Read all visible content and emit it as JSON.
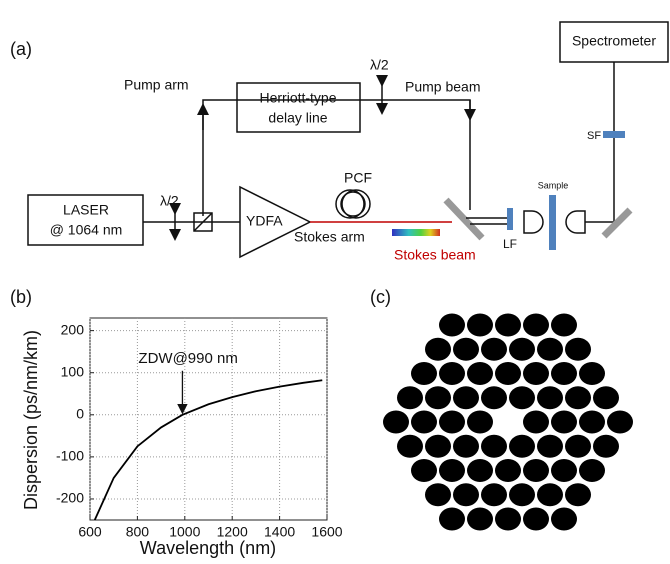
{
  "panel_a": {
    "label": "(a)",
    "spectrometer": "Spectrometer",
    "pump_arm": "Pump arm",
    "delay_line": [
      "Herriott-type",
      "delay line"
    ],
    "half_wave_1": "λ/2",
    "half_wave_2": "λ/2",
    "pump_beam": "Pump beam",
    "sf": "SF",
    "laser": [
      "LASER",
      "@ 1064 nm"
    ],
    "ydfa": "YDFA",
    "pcf": "PCF",
    "stokes_arm": "Stokes arm",
    "stokes_beam": "Stokes beam",
    "lf": "LF",
    "sample": "Sample"
  },
  "chart_data": {
    "type": "line",
    "label": "(b)",
    "x_label": "Wavelength (nm)",
    "y_label": "Dispersion (ps/nm/km)",
    "x": [
      620,
      700,
      800,
      900,
      990,
      1100,
      1200,
      1300,
      1400,
      1500,
      1580
    ],
    "series": [
      {
        "color": "#000000",
        "values": [
          -250,
          -150,
          -75,
          -30,
          0,
          25,
          42,
          56,
          67,
          76,
          82
        ]
      }
    ],
    "xlim": [
      600,
      1600
    ],
    "xticks": [
      600,
      800,
      1000,
      1200,
      1400,
      1600
    ],
    "ylim": [
      -250,
      230
    ],
    "yticks": [
      -200,
      -100,
      0,
      100,
      200
    ],
    "grid": true,
    "annotations": [
      {
        "text": "ZDW@990 nm",
        "x": 990,
        "y": 0
      }
    ]
  },
  "panel_c": {
    "label": "(c)"
  }
}
